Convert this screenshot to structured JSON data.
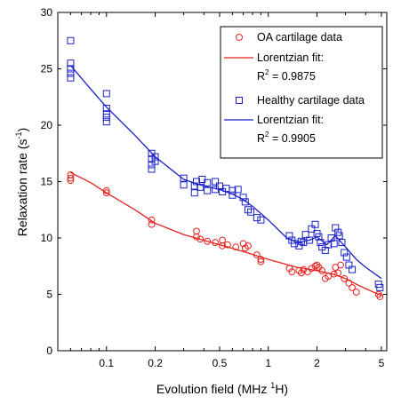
{
  "chart_data": {
    "type": "scatter",
    "xlabel_main": "Evolution field (MHz ",
    "xlabel_sup": "1",
    "xlabel_tail": "H)",
    "ylabel_main": "Relaxation rate (s",
    "ylabel_sup": "-1",
    "ylabel_tail": ")",
    "x_scale": "log",
    "xlim": [
      0.05,
      5.4
    ],
    "ylim": [
      0,
      30
    ],
    "x_ticks": [
      {
        "value": 0.1,
        "label": "0.1"
      },
      {
        "value": 0.2,
        "label": "0.2"
      },
      {
        "value": 0.5,
        "label": "0.5"
      },
      {
        "value": 1,
        "label": "1"
      },
      {
        "value": 2,
        "label": "2"
      },
      {
        "value": 5,
        "label": "5"
      }
    ],
    "y_ticks": [
      {
        "value": 0,
        "label": "0"
      },
      {
        "value": 5,
        "label": "5"
      },
      {
        "value": 10,
        "label": "10"
      },
      {
        "value": 15,
        "label": "15"
      },
      {
        "value": 20,
        "label": "20"
      },
      {
        "value": 25,
        "label": "25"
      },
      {
        "value": 30,
        "label": "30"
      }
    ],
    "grid": false,
    "legend_position": "top-right",
    "legend": [
      {
        "kind": "marker-circle",
        "color": "#e8211f",
        "text": "OA cartilage data"
      },
      {
        "kind": "line",
        "color": "#e8211f",
        "text": "Lorentzian fit:"
      },
      {
        "kind": "none",
        "text_main": "R",
        "text_sup": "2",
        "text_tail": " = 0.9875"
      },
      {
        "kind": "marker-square",
        "color": "#1a21c8",
        "text": "Healthy cartilage data"
      },
      {
        "kind": "line",
        "color": "#1a21c8",
        "text": "Lorentzian fit:"
      },
      {
        "kind": "none",
        "text_main": "R",
        "text_sup": "2",
        "text_tail": " = 0.9905"
      }
    ],
    "series": [
      {
        "name": "OA cartilage data",
        "marker": "circle",
        "color": "#e8211f",
        "x": [
          0.06,
          0.06,
          0.06,
          0.1,
          0.1,
          0.19,
          0.19,
          0.36,
          0.36,
          0.38,
          0.42,
          0.47,
          0.52,
          0.52,
          0.56,
          0.63,
          0.7,
          0.72,
          0.75,
          0.85,
          0.9,
          0.9,
          1.35,
          1.4,
          1.55,
          1.6,
          1.65,
          1.75,
          1.85,
          1.95,
          2.0,
          2.05,
          2.15,
          2.25,
          2.35,
          2.55,
          2.6,
          2.7,
          2.8,
          2.95,
          3.15,
          3.3,
          3.5,
          4.8,
          4.9
        ],
        "y": [
          15.6,
          15.3,
          15.1,
          14.2,
          14.0,
          11.6,
          11.2,
          10.6,
          10.1,
          9.9,
          9.7,
          9.6,
          9.8,
          9.3,
          9.4,
          9.2,
          9.5,
          9.1,
          9.3,
          8.5,
          8.1,
          7.9,
          7.3,
          7.0,
          7.1,
          6.9,
          7.2,
          7.0,
          7.3,
          7.5,
          7.6,
          7.4,
          7.1,
          6.4,
          6.6,
          6.8,
          7.4,
          6.9,
          7.6,
          6.4,
          6.0,
          5.6,
          5.2,
          5.0,
          4.8
        ]
      },
      {
        "name": "Healthy cartilage data",
        "marker": "square",
        "color": "#1a21c8",
        "x": [
          0.06,
          0.06,
          0.06,
          0.06,
          0.06,
          0.1,
          0.1,
          0.1,
          0.1,
          0.1,
          0.19,
          0.19,
          0.19,
          0.19,
          0.2,
          0.2,
          0.3,
          0.3,
          0.35,
          0.35,
          0.36,
          0.38,
          0.39,
          0.42,
          0.42,
          0.47,
          0.47,
          0.5,
          0.52,
          0.55,
          0.6,
          0.6,
          0.65,
          0.7,
          0.72,
          0.75,
          0.78,
          0.85,
          0.9,
          1.35,
          1.4,
          1.45,
          1.55,
          1.6,
          1.65,
          1.7,
          1.8,
          1.85,
          1.95,
          2.0,
          2.05,
          2.1,
          2.15,
          2.25,
          2.35,
          2.45,
          2.55,
          2.6,
          2.7,
          2.75,
          2.85,
          2.95,
          3.05,
          3.15,
          3.3,
          4.8,
          4.9
        ],
        "y": [
          27.5,
          25.5,
          25.0,
          24.6,
          24.2,
          22.8,
          21.5,
          21.0,
          20.7,
          20.3,
          17.5,
          17.0,
          16.5,
          16.1,
          17.2,
          16.8,
          15.3,
          14.7,
          14.6,
          14.0,
          15.0,
          14.5,
          15.2,
          14.9,
          14.2,
          15.0,
          14.3,
          14.6,
          14.1,
          14.4,
          14.2,
          13.8,
          14.3,
          13.6,
          13.2,
          12.5,
          12.3,
          11.8,
          11.6,
          10.2,
          9.8,
          9.5,
          9.3,
          9.7,
          9.6,
          10.3,
          9.8,
          10.8,
          11.2,
          10.4,
          10.1,
          9.6,
          9.2,
          8.9,
          9.4,
          10.0,
          9.5,
          10.9,
          10.5,
          10.2,
          9.6,
          8.7,
          8.3,
          7.6,
          7.2,
          5.9,
          5.6
        ]
      },
      {
        "name": "OA Lorentzian fit",
        "type": "line",
        "color": "#e8211f",
        "x": [
          0.06,
          0.08,
          0.1,
          0.15,
          0.2,
          0.3,
          0.5,
          0.7,
          1.0,
          1.5,
          2.0,
          2.5,
          3.0,
          3.5,
          4.0,
          5.0
        ],
        "y": [
          15.8,
          14.9,
          14.0,
          12.5,
          11.3,
          10.3,
          9.4,
          8.8,
          8.1,
          7.4,
          7.1,
          6.8,
          6.4,
          5.9,
          5.5,
          4.9
        ]
      },
      {
        "name": "Healthy Lorentzian fit",
        "type": "line",
        "color": "#1a21c8",
        "x": [
          0.06,
          0.08,
          0.1,
          0.15,
          0.2,
          0.3,
          0.4,
          0.5,
          0.6,
          0.7,
          0.8,
          1.0,
          1.3,
          1.5,
          1.8,
          2.0,
          2.3,
          2.6,
          3.0,
          3.5,
          4.0,
          5.0
        ],
        "y": [
          25.3,
          23.2,
          21.6,
          19.1,
          17.2,
          15.2,
          14.6,
          14.3,
          13.9,
          13.4,
          12.8,
          11.6,
          10.0,
          9.6,
          9.8,
          10.1,
          9.4,
          10.2,
          9.2,
          8.1,
          7.4,
          6.4
        ]
      }
    ]
  }
}
